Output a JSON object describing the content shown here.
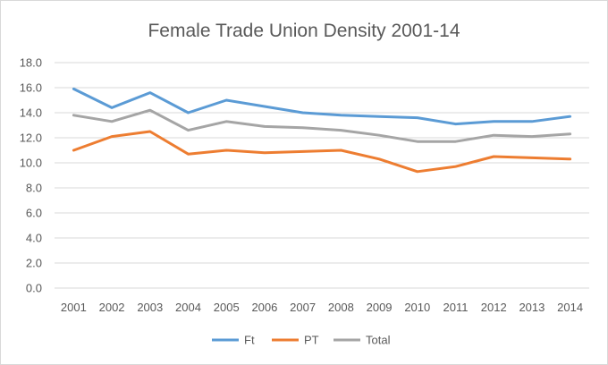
{
  "chart_data": {
    "type": "line",
    "title": "Female Trade Union Density 2001-14",
    "xlabel": "",
    "ylabel": "",
    "categories": [
      "2001",
      "2002",
      "2003",
      "2004",
      "2005",
      "2006",
      "2007",
      "2008",
      "2009",
      "2010",
      "2011",
      "2012",
      "2013",
      "2014"
    ],
    "yticks": [
      "0.0",
      "2.0",
      "4.0",
      "6.0",
      "8.0",
      "10.0",
      "12.0",
      "14.0",
      "16.0",
      "18.0"
    ],
    "ylim": [
      0,
      18
    ],
    "grid": true,
    "legend_position": "bottom",
    "series": [
      {
        "name": "Ft",
        "color": "#5b9bd5",
        "values": [
          15.9,
          14.4,
          15.6,
          14.0,
          15.0,
          14.5,
          14.0,
          13.8,
          13.7,
          13.6,
          13.1,
          13.3,
          13.3,
          13.7
        ]
      },
      {
        "name": "PT",
        "color": "#ed7d31",
        "values": [
          11.0,
          12.1,
          12.5,
          10.7,
          11.0,
          10.8,
          10.9,
          11.0,
          10.3,
          9.3,
          9.7,
          10.5,
          10.4,
          10.3
        ]
      },
      {
        "name": "Total",
        "color": "#a5a5a5",
        "values": [
          13.8,
          13.3,
          14.2,
          12.6,
          13.3,
          12.9,
          12.8,
          12.6,
          12.2,
          11.7,
          11.7,
          12.2,
          12.1,
          12.3
        ]
      }
    ]
  }
}
